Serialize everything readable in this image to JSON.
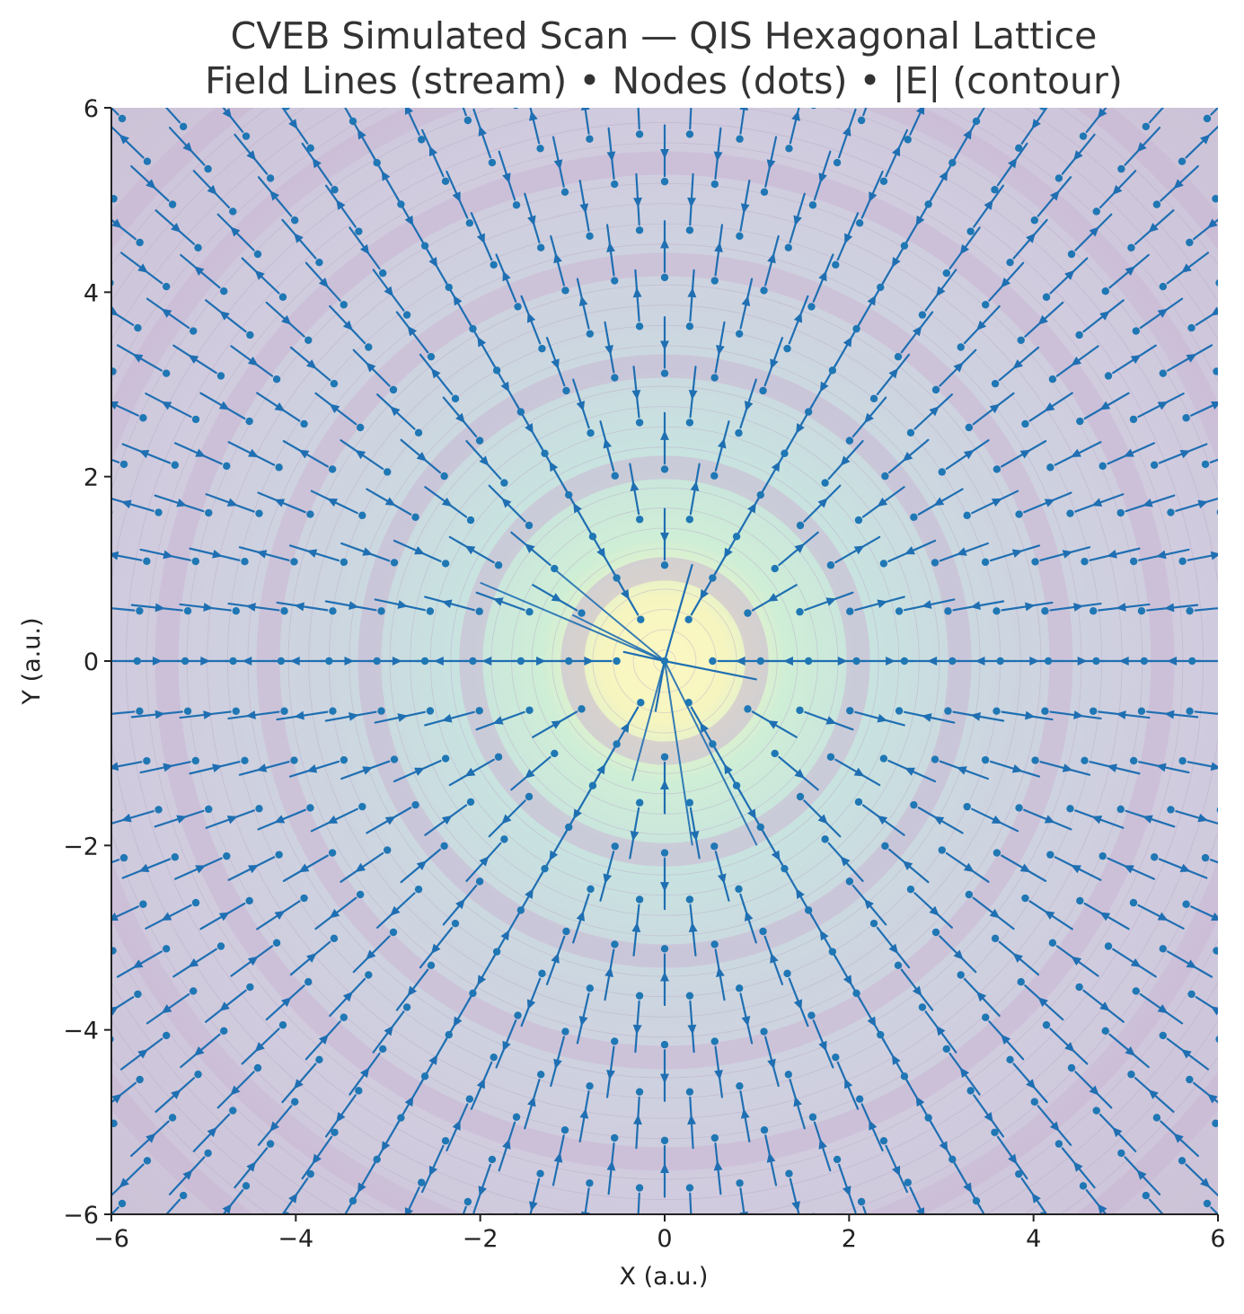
{
  "chart_data": {
    "type": "streamplot+contour+scatter",
    "title_line1": "CVEB Simulated Scan — QIS Hexagonal Lattice",
    "title_line2": "Field Lines (stream) • Nodes (dots) • |E| (contour)",
    "xlabel": "X (a.u.)",
    "ylabel": "Y (a.u.)",
    "xlim": [
      -6,
      6
    ],
    "ylim": [
      -6,
      6
    ],
    "xticks": [
      -6,
      -4,
      -2,
      0,
      2,
      4,
      6
    ],
    "yticks": [
      -6,
      -4,
      -2,
      0,
      2,
      4,
      6
    ],
    "xtick_labels": [
      "−6",
      "−4",
      "−2",
      "0",
      "2",
      "4",
      "6"
    ],
    "ytick_labels": [
      "−6",
      "−4",
      "−2",
      "0",
      "2",
      "4",
      "6"
    ],
    "grid": false,
    "field_center": [
      0,
      0
    ],
    "contour_ring_radii": [
      1.0,
      2.1,
      3.2,
      4.3,
      5.4,
      6.5,
      7.6
    ],
    "lattice": {
      "kind": "hexagonal",
      "center": [
        0,
        0
      ],
      "ring_spacing": 0.52,
      "nodes_per_ring_step": 6
    },
    "colors": {
      "stream": "#1f6fb2",
      "nodes": "#1f77b4",
      "contour_low": "#cdc6dc",
      "contour_high": "#fdf8c4",
      "contour_ring": "#cbb6d3"
    }
  }
}
